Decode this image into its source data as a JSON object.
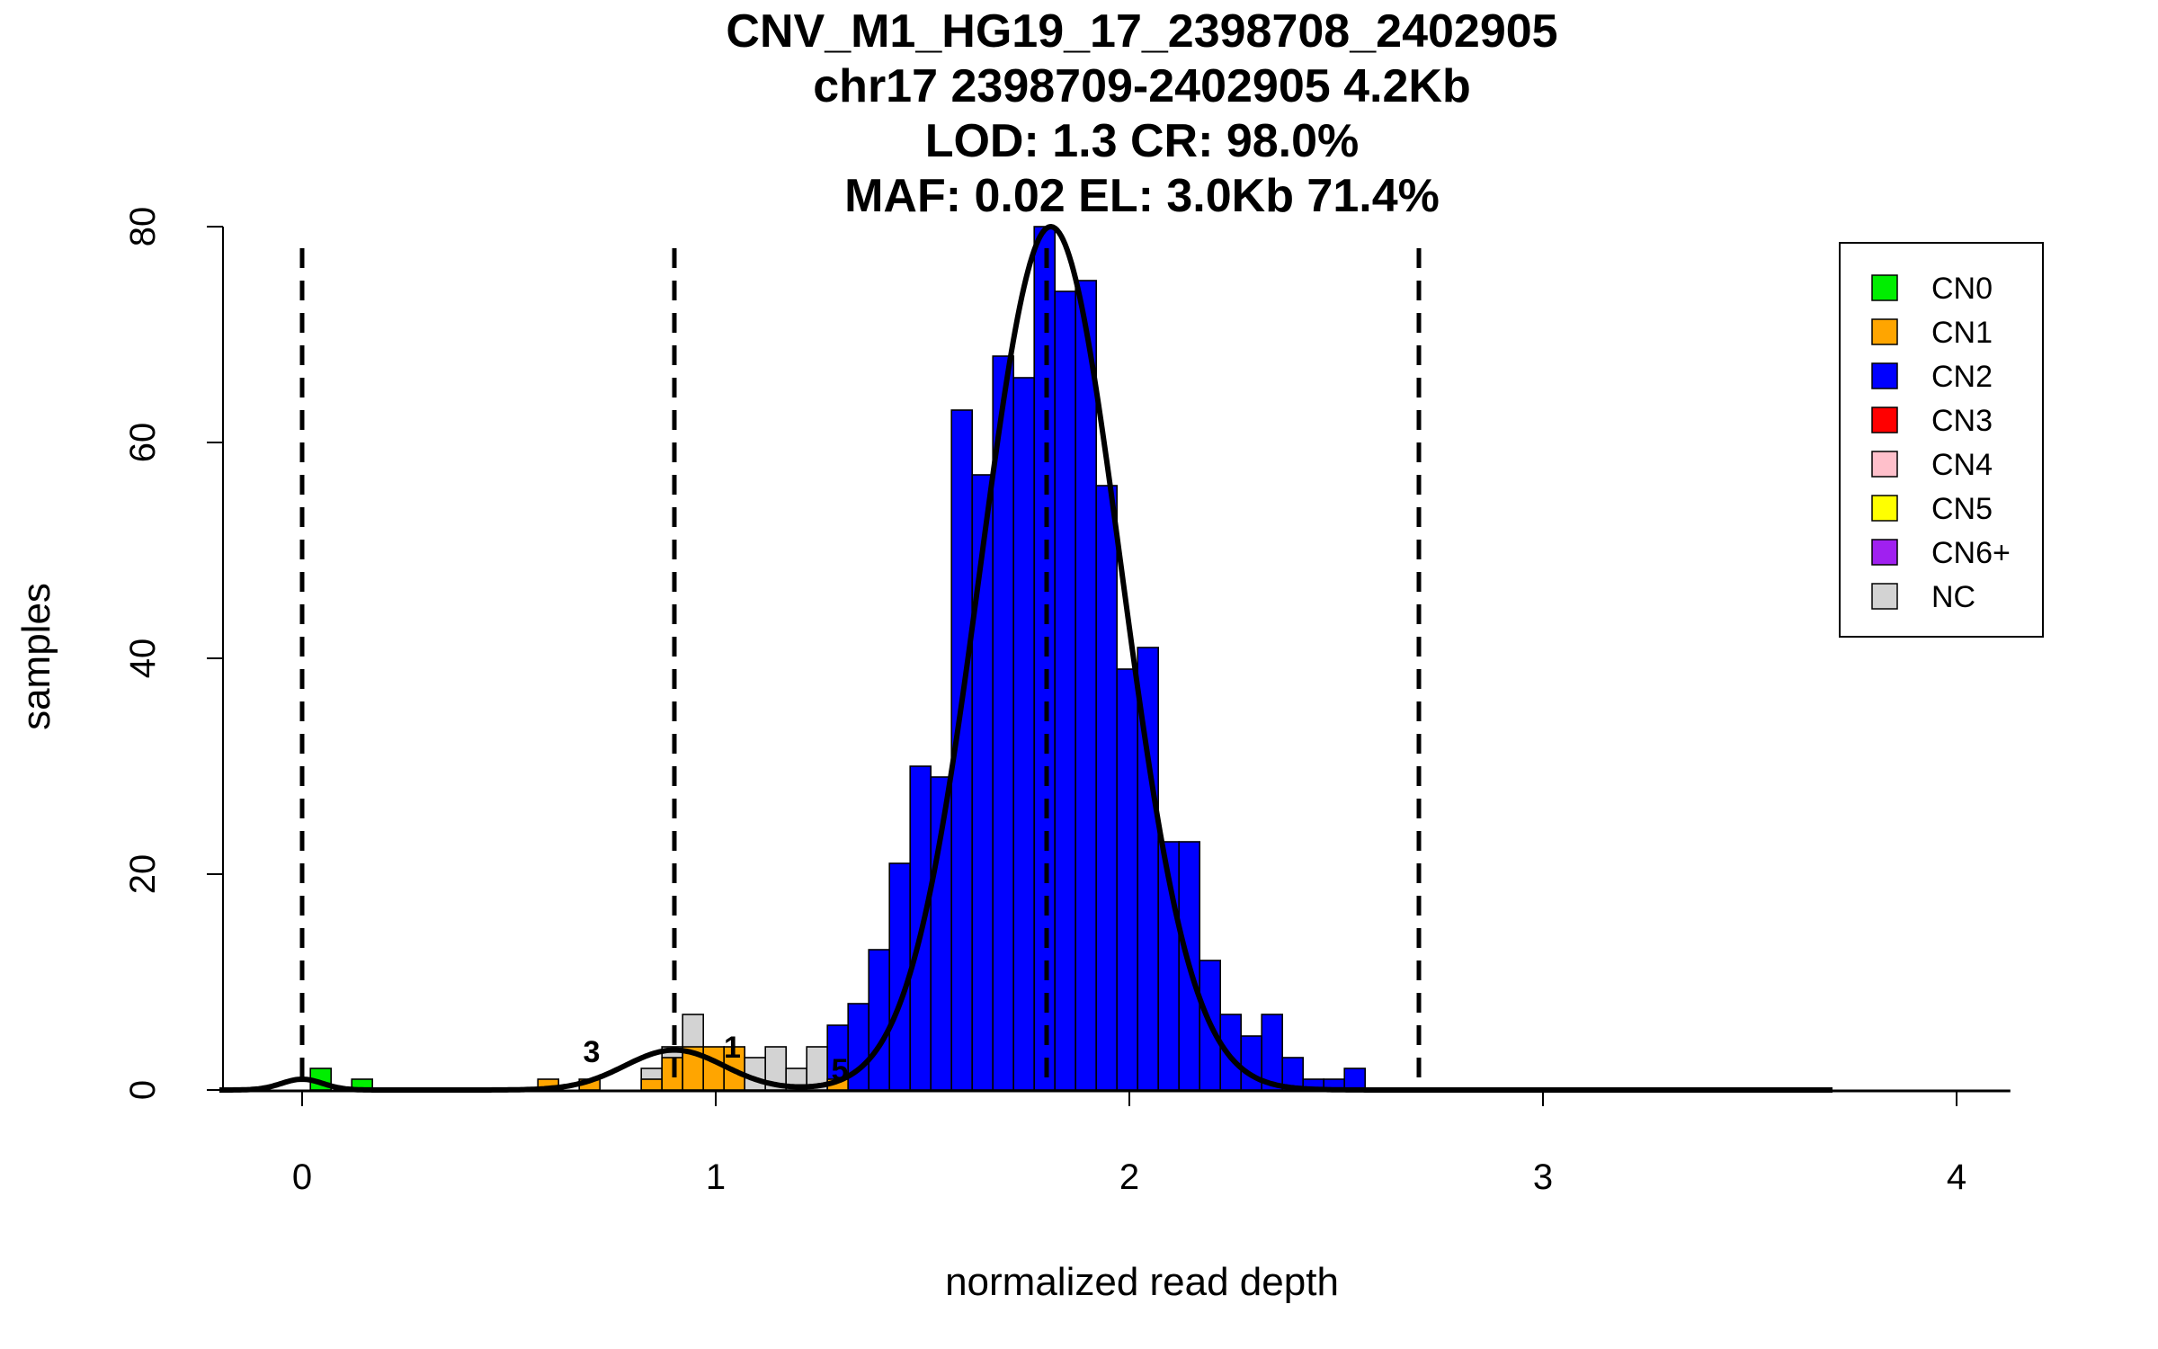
{
  "chart_data": {
    "type": "bar",
    "title_lines": [
      "CNV_M1_HG19_17_2398708_2402905",
      "chr17 2398709-2402905 4.2Kb",
      "LOD: 1.3 CR: 98.0%",
      "MAF: 0.02 EL: 3.0Kb 71.4%"
    ],
    "xlabel": "normalized read depth",
    "ylabel": "samples",
    "xlim": [
      -0.2,
      4.13
    ],
    "ylim": [
      0,
      80
    ],
    "x_ticks": [
      "0",
      "1",
      "2",
      "3",
      "4"
    ],
    "y_ticks": [
      "0",
      "20",
      "40",
      "60",
      "80"
    ],
    "bin_width": 0.05,
    "colors": {
      "CN0": "#00ee00",
      "CN1": "#ffa500",
      "CN2": "#0000ff",
      "CN3": "#ff0000",
      "CN4": "#ffc0cb",
      "CN5": "#ffff00",
      "CN6+": "#a020f0",
      "NC": "#d3d3d3"
    },
    "legend": [
      "CN0",
      "CN1",
      "CN2",
      "CN3",
      "CN4",
      "CN5",
      "CN6+",
      "NC"
    ],
    "legend_position": "top-right",
    "bars": [
      {
        "x0": 0.02,
        "cls": "CN0",
        "count": 2
      },
      {
        "x0": 0.12,
        "cls": "CN0",
        "count": 1
      },
      {
        "x0": 0.57,
        "cls": "CN1",
        "count": 1
      },
      {
        "x0": 0.67,
        "cls": "CN1",
        "count": 1
      },
      {
        "x0": 0.82,
        "cls": "NC",
        "count": 2
      },
      {
        "x0": 0.82,
        "cls": "CN1",
        "count": 1
      },
      {
        "x0": 0.87,
        "cls": "NC",
        "count": 4
      },
      {
        "x0": 0.87,
        "cls": "CN1",
        "count": 3
      },
      {
        "x0": 0.92,
        "cls": "NC",
        "count": 7
      },
      {
        "x0": 0.92,
        "cls": "CN1",
        "count": 4
      },
      {
        "x0": 0.97,
        "cls": "CN1",
        "count": 4
      },
      {
        "x0": 1.02,
        "cls": "CN1",
        "count": 4
      },
      {
        "x0": 1.07,
        "cls": "NC",
        "count": 3
      },
      {
        "x0": 1.12,
        "cls": "NC",
        "count": 4
      },
      {
        "x0": 1.17,
        "cls": "NC",
        "count": 2
      },
      {
        "x0": 1.22,
        "cls": "NC",
        "count": 4
      },
      {
        "x0": 1.27,
        "cls": "CN2",
        "count": 6
      },
      {
        "x0": 1.27,
        "cls": "CN1",
        "count": 1
      },
      {
        "x0": 1.32,
        "cls": "CN2",
        "count": 8
      },
      {
        "x0": 1.37,
        "cls": "CN2",
        "count": 13
      },
      {
        "x0": 1.42,
        "cls": "CN2",
        "count": 21
      },
      {
        "x0": 1.47,
        "cls": "CN2",
        "count": 30
      },
      {
        "x0": 1.52,
        "cls": "CN2",
        "count": 29
      },
      {
        "x0": 1.57,
        "cls": "CN2",
        "count": 63
      },
      {
        "x0": 1.62,
        "cls": "CN2",
        "count": 57
      },
      {
        "x0": 1.67,
        "cls": "CN2",
        "count": 68
      },
      {
        "x0": 1.72,
        "cls": "CN2",
        "count": 66
      },
      {
        "x0": 1.77,
        "cls": "CN2",
        "count": 80
      },
      {
        "x0": 1.82,
        "cls": "CN2",
        "count": 74
      },
      {
        "x0": 1.87,
        "cls": "CN2",
        "count": 75
      },
      {
        "x0": 1.92,
        "cls": "CN2",
        "count": 56
      },
      {
        "x0": 1.97,
        "cls": "CN2",
        "count": 39
      },
      {
        "x0": 2.02,
        "cls": "CN2",
        "count": 41
      },
      {
        "x0": 2.07,
        "cls": "CN2",
        "count": 23
      },
      {
        "x0": 2.12,
        "cls": "CN2",
        "count": 23
      },
      {
        "x0": 2.17,
        "cls": "CN2",
        "count": 12
      },
      {
        "x0": 2.22,
        "cls": "CN2",
        "count": 7
      },
      {
        "x0": 2.27,
        "cls": "CN2",
        "count": 5
      },
      {
        "x0": 2.32,
        "cls": "CN2",
        "count": 7
      },
      {
        "x0": 2.37,
        "cls": "CN2",
        "count": 3
      },
      {
        "x0": 2.42,
        "cls": "CN2",
        "count": 1
      },
      {
        "x0": 2.47,
        "cls": "CN2",
        "count": 1
      },
      {
        "x0": 2.52,
        "cls": "CN2",
        "count": 2
      }
    ],
    "baseline_segments": [
      [
        0.17,
        0.27
      ],
      [
        0.32,
        0.57
      ],
      [
        2.57,
        3.7
      ]
    ],
    "dashed_lines": [
      0,
      0.9,
      1.8,
      2.7
    ],
    "components": [
      {
        "mean": 0.0,
        "sd": 0.05,
        "peak": 1
      },
      {
        "mean": 0.9,
        "sd": 0.12,
        "peak": 3.7
      },
      {
        "mean": 1.81,
        "sd": 0.17,
        "peak": 80
      }
    ],
    "peak_labels": [
      {
        "text": "3",
        "x": 0.7,
        "y": 2.6
      },
      {
        "text": "1",
        "x": 1.04,
        "y": 3.0
      },
      {
        "text": "5",
        "x": 1.3,
        "y": 0.9
      }
    ]
  }
}
